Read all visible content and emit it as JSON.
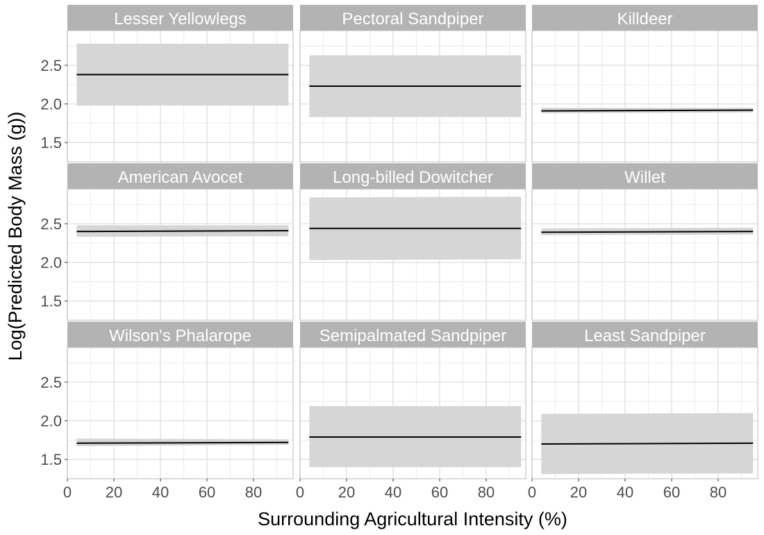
{
  "chart_data": {
    "type": "line",
    "layout": "facet-grid 3x3",
    "xlabel": "Surrounding Agricultural Intensity (%)",
    "ylabel": "Log(Predicted Body Mass (g))",
    "xlim": [
      0,
      97
    ],
    "ylim": [
      1.25,
      2.95
    ],
    "x_ticks": [
      0,
      20,
      40,
      60,
      80
    ],
    "y_ticks": [
      1.5,
      2.0,
      2.5
    ],
    "x_tick_labels": [
      "0",
      "20",
      "40",
      "60",
      "80"
    ],
    "y_tick_labels": [
      "1.5",
      "2.0",
      "2.5"
    ],
    "grid": true,
    "legend": "none",
    "colors": {
      "line": "#000000",
      "ribbon": "#d6d6d6",
      "strip": "#b3b3b3",
      "grid": "#dedede"
    },
    "panels": [
      {
        "name": "Lesser Yellowlegs",
        "x": [
          4,
          95
        ],
        "fit": [
          2.38,
          2.38
        ],
        "lower": [
          1.98,
          1.98
        ],
        "upper": [
          2.78,
          2.78
        ]
      },
      {
        "name": "Pectoral Sandpiper",
        "x": [
          4,
          95
        ],
        "fit": [
          2.23,
          2.23
        ],
        "lower": [
          1.83,
          1.83
        ],
        "upper": [
          2.63,
          2.63
        ]
      },
      {
        "name": "Killdeer",
        "x": [
          4,
          95
        ],
        "fit": [
          1.91,
          1.92
        ],
        "lower": [
          1.88,
          1.89
        ],
        "upper": [
          1.95,
          1.95
        ]
      },
      {
        "name": "American Avocet",
        "x": [
          4,
          95
        ],
        "fit": [
          2.4,
          2.41
        ],
        "lower": [
          2.33,
          2.34
        ],
        "upper": [
          2.48,
          2.48
        ]
      },
      {
        "name": "Long-billed Dowitcher",
        "x": [
          4,
          95
        ],
        "fit": [
          2.44,
          2.44
        ],
        "lower": [
          2.03,
          2.04
        ],
        "upper": [
          2.84,
          2.85
        ]
      },
      {
        "name": "Willet",
        "x": [
          4,
          95
        ],
        "fit": [
          2.39,
          2.4
        ],
        "lower": [
          2.35,
          2.36
        ],
        "upper": [
          2.44,
          2.45
        ]
      },
      {
        "name": "Wilson's Phalarope",
        "x": [
          4,
          95
        ],
        "fit": [
          1.71,
          1.72
        ],
        "lower": [
          1.67,
          1.69
        ],
        "upper": [
          1.77,
          1.76
        ]
      },
      {
        "name": "Semipalmated Sandpiper",
        "x": [
          4,
          95
        ],
        "fit": [
          1.79,
          1.79
        ],
        "lower": [
          1.4,
          1.4
        ],
        "upper": [
          2.19,
          2.19
        ]
      },
      {
        "name": "Least Sandpiper",
        "x": [
          4,
          95
        ],
        "fit": [
          1.7,
          1.71
        ],
        "lower": [
          1.31,
          1.32
        ],
        "upper": [
          2.09,
          2.1
        ]
      }
    ]
  }
}
